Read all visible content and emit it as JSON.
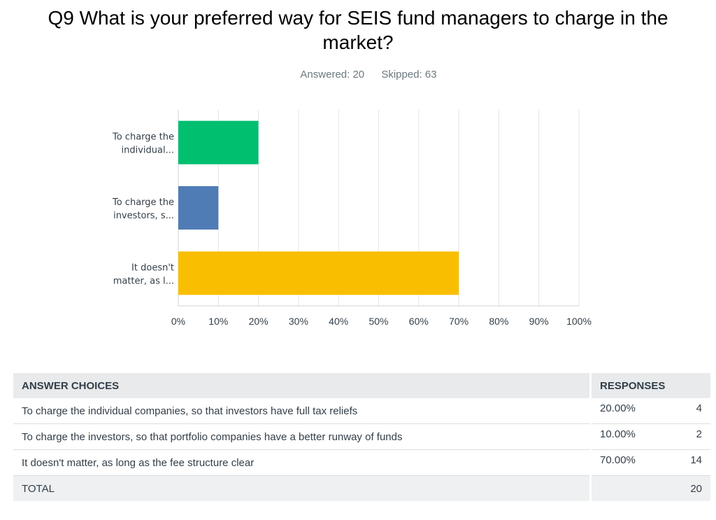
{
  "title": "Q9 What is your preferred way for SEIS fund managers to charge in the market?",
  "answered_label": "Answered: 20",
  "skipped_label": "Skipped: 63",
  "chart_data": {
    "type": "bar",
    "orientation": "horizontal",
    "categories": [
      "To charge the individual...",
      "To charge the investors, s...",
      "It doesn't matter, as l..."
    ],
    "category_lines": [
      [
        "To charge the",
        "individual..."
      ],
      [
        "To charge the",
        "investors, s..."
      ],
      [
        "It doesn't",
        "matter, as l..."
      ]
    ],
    "values": [
      20,
      10,
      70
    ],
    "colors": [
      "#00bf6f",
      "#507cb6",
      "#f9be00"
    ],
    "xlim": [
      0,
      100
    ],
    "xticks": [
      "0%",
      "10%",
      "20%",
      "30%",
      "40%",
      "50%",
      "60%",
      "70%",
      "80%",
      "90%",
      "100%"
    ],
    "grid": true,
    "title": "",
    "xlabel": "",
    "ylabel": ""
  },
  "table": {
    "headers": [
      "ANSWER CHOICES",
      "RESPONSES"
    ],
    "rows": [
      {
        "choice": "To charge the individual companies, so that investors have full tax reliefs",
        "percent": "20.00%",
        "count": "4"
      },
      {
        "choice": "To charge the investors, so that portfolio companies have a better runway of funds",
        "percent": "10.00%",
        "count": "2"
      },
      {
        "choice": "It doesn't matter, as long as the fee structure clear",
        "percent": "70.00%",
        "count": "14"
      }
    ],
    "total_label": "TOTAL",
    "total_count": "20"
  }
}
